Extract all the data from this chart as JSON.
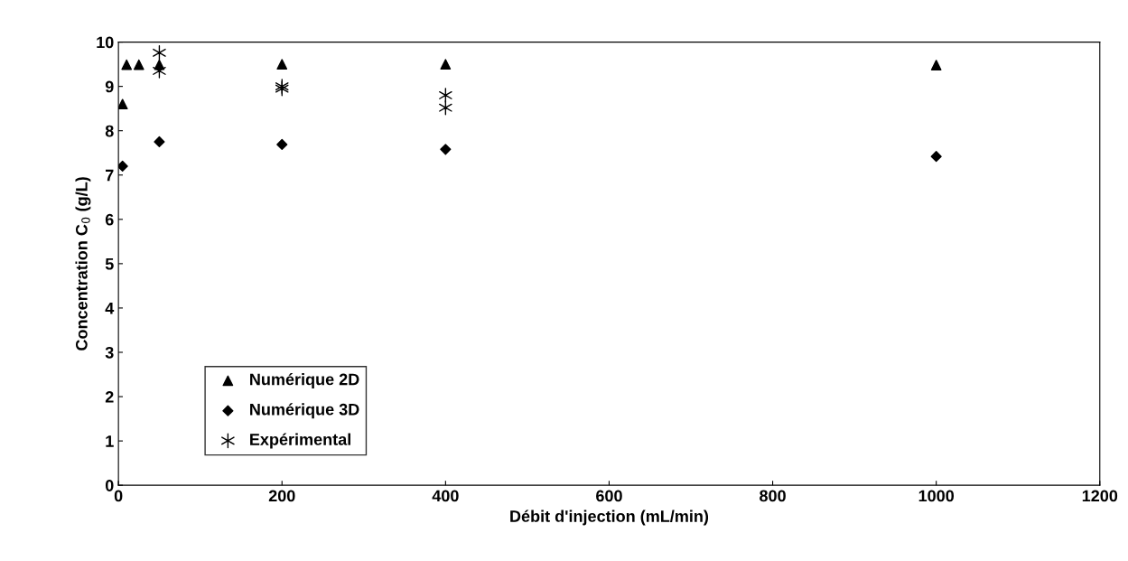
{
  "chart_data": {
    "type": "scatter",
    "xlabel": "Débit d'injection (mL/min)",
    "ylabel": "Concentration C$_{0}$ (g/L)",
    "xlim": [
      0,
      1200
    ],
    "xticks": [
      0,
      200,
      400,
      600,
      800,
      1000,
      1200
    ],
    "ylim": [
      0,
      10
    ],
    "yticks": [
      0,
      1,
      2,
      3,
      4,
      5,
      6,
      7,
      8,
      9,
      10
    ],
    "grid": false,
    "legend": "bottom left",
    "series": [
      {
        "name": "Numérique 2D",
        "color": "#000000",
        "marker": "triangle",
        "x": [
          5,
          10,
          25,
          50,
          200,
          400,
          1000
        ],
        "values": [
          8.6,
          9.49,
          9.49,
          9.49,
          9.5,
          9.5,
          9.48
        ]
      },
      {
        "name": "Numérique 3D",
        "color": "#000000",
        "marker": "diamond",
        "x": [
          5,
          50,
          200,
          400,
          1000
        ],
        "values": [
          7.2,
          7.75,
          7.69,
          7.58,
          7.42
        ]
      },
      {
        "name": "Expérimental",
        "color": "#000000",
        "marker": "cross",
        "x": [
          50,
          50,
          200,
          200,
          400,
          400
        ],
        "values": [
          9.76,
          9.35,
          9.0,
          8.95,
          8.8,
          8.52
        ]
      }
    ]
  }
}
